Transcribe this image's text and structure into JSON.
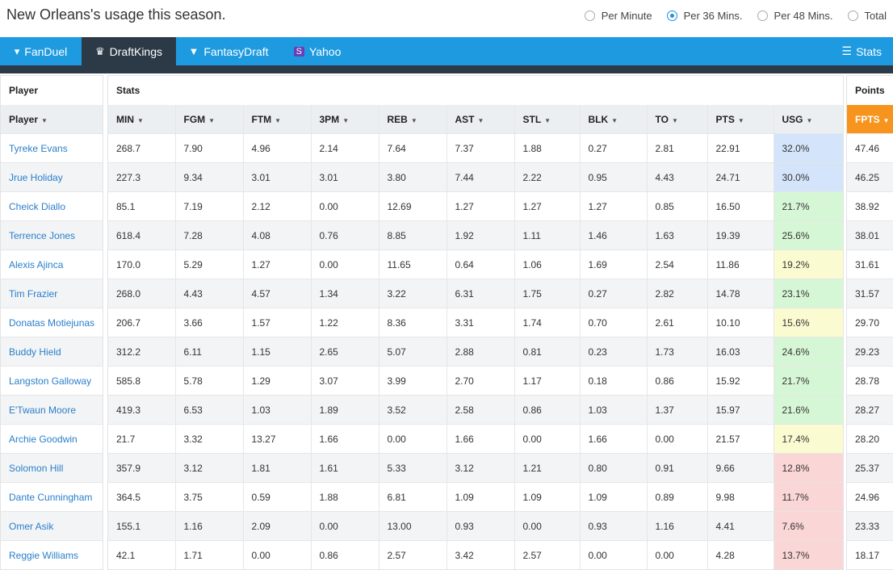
{
  "header": {
    "title": "New Orleans's usage this season."
  },
  "radios": [
    {
      "label": "Per Minute",
      "selected": false
    },
    {
      "label": "Per 36 Mins.",
      "selected": true
    },
    {
      "label": "Per 48 Mins.",
      "selected": false
    },
    {
      "label": "Total",
      "selected": false
    }
  ],
  "nav": {
    "tabs": [
      {
        "label": "FanDuel",
        "icon": "fanduel-icon",
        "active": false
      },
      {
        "label": "DraftKings",
        "icon": "draftkings-icon",
        "active": true
      },
      {
        "label": "FantasyDraft",
        "icon": "fantasydraft-icon",
        "active": false
      },
      {
        "label": "Yahoo",
        "icon": "yahoo-icon",
        "active": false
      }
    ],
    "stats_label": "Stats"
  },
  "panels": {
    "player_title": "Player",
    "stats_title": "Stats",
    "points_title": "Points"
  },
  "columns": {
    "player": "Player",
    "stats": [
      "MIN",
      "FGM",
      "FTM",
      "3PM",
      "REB",
      "AST",
      "STL",
      "BLK",
      "TO",
      "PTS",
      "USG"
    ],
    "fpts": "FPTS"
  },
  "colors": {
    "blue": "#d4e4fb",
    "green": "#d6f7d6",
    "yellow": "#fbfbd1",
    "red": "#fbd6d6",
    "accent": "#1e9be0",
    "orange": "#f7941d"
  },
  "rows": [
    {
      "player": "Tyreke Evans",
      "stats": [
        "268.7",
        "7.90",
        "4.96",
        "2.14",
        "7.64",
        "7.37",
        "1.88",
        "0.27",
        "2.81",
        "22.91",
        "32.0%"
      ],
      "usg_color": "blue",
      "fpts": "47.46"
    },
    {
      "player": "Jrue Holiday",
      "stats": [
        "227.3",
        "9.34",
        "3.01",
        "3.01",
        "3.80",
        "7.44",
        "2.22",
        "0.95",
        "4.43",
        "24.71",
        "30.0%"
      ],
      "usg_color": "blue",
      "fpts": "46.25"
    },
    {
      "player": "Cheick Diallo",
      "stats": [
        "85.1",
        "7.19",
        "2.12",
        "0.00",
        "12.69",
        "1.27",
        "1.27",
        "1.27",
        "0.85",
        "16.50",
        "21.7%"
      ],
      "usg_color": "green",
      "fpts": "38.92"
    },
    {
      "player": "Terrence Jones",
      "stats": [
        "618.4",
        "7.28",
        "4.08",
        "0.76",
        "8.85",
        "1.92",
        "1.11",
        "1.46",
        "1.63",
        "19.39",
        "25.6%"
      ],
      "usg_color": "green",
      "fpts": "38.01"
    },
    {
      "player": "Alexis Ajinca",
      "stats": [
        "170.0",
        "5.29",
        "1.27",
        "0.00",
        "11.65",
        "0.64",
        "1.06",
        "1.69",
        "2.54",
        "11.86",
        "19.2%"
      ],
      "usg_color": "yellow",
      "fpts": "31.61"
    },
    {
      "player": "Tim Frazier",
      "stats": [
        "268.0",
        "4.43",
        "4.57",
        "1.34",
        "3.22",
        "6.31",
        "1.75",
        "0.27",
        "2.82",
        "14.78",
        "23.1%"
      ],
      "usg_color": "green",
      "fpts": "31.57"
    },
    {
      "player": "Donatas Motiejunas",
      "stats": [
        "206.7",
        "3.66",
        "1.57",
        "1.22",
        "8.36",
        "3.31",
        "1.74",
        "0.70",
        "2.61",
        "10.10",
        "15.6%"
      ],
      "usg_color": "yellow",
      "fpts": "29.70"
    },
    {
      "player": "Buddy Hield",
      "stats": [
        "312.2",
        "6.11",
        "1.15",
        "2.65",
        "5.07",
        "2.88",
        "0.81",
        "0.23",
        "1.73",
        "16.03",
        "24.6%"
      ],
      "usg_color": "green",
      "fpts": "29.23"
    },
    {
      "player": "Langston Galloway",
      "stats": [
        "585.8",
        "5.78",
        "1.29",
        "3.07",
        "3.99",
        "2.70",
        "1.17",
        "0.18",
        "0.86",
        "15.92",
        "21.7%"
      ],
      "usg_color": "green",
      "fpts": "28.78"
    },
    {
      "player": "E'Twaun Moore",
      "stats": [
        "419.3",
        "6.53",
        "1.03",
        "1.89",
        "3.52",
        "2.58",
        "0.86",
        "1.03",
        "1.37",
        "15.97",
        "21.6%"
      ],
      "usg_color": "green",
      "fpts": "28.27"
    },
    {
      "player": "Archie Goodwin",
      "stats": [
        "21.7",
        "3.32",
        "13.27",
        "1.66",
        "0.00",
        "1.66",
        "0.00",
        "1.66",
        "0.00",
        "21.57",
        "17.4%"
      ],
      "usg_color": "yellow",
      "fpts": "28.20"
    },
    {
      "player": "Solomon Hill",
      "stats": [
        "357.9",
        "3.12",
        "1.81",
        "1.61",
        "5.33",
        "3.12",
        "1.21",
        "0.80",
        "0.91",
        "9.66",
        "12.8%"
      ],
      "usg_color": "red",
      "fpts": "25.37"
    },
    {
      "player": "Dante Cunningham",
      "stats": [
        "364.5",
        "3.75",
        "0.59",
        "1.88",
        "6.81",
        "1.09",
        "1.09",
        "1.09",
        "0.89",
        "9.98",
        "11.7%"
      ],
      "usg_color": "red",
      "fpts": "24.96"
    },
    {
      "player": "Omer Asik",
      "stats": [
        "155.1",
        "1.16",
        "2.09",
        "0.00",
        "13.00",
        "0.93",
        "0.00",
        "0.93",
        "1.16",
        "4.41",
        "7.6%"
      ],
      "usg_color": "red",
      "fpts": "23.33"
    },
    {
      "player": "Reggie Williams",
      "stats": [
        "42.1",
        "1.71",
        "0.00",
        "0.86",
        "2.57",
        "3.42",
        "2.57",
        "0.00",
        "0.00",
        "4.28",
        "13.7%"
      ],
      "usg_color": "red",
      "fpts": "18.17"
    }
  ]
}
